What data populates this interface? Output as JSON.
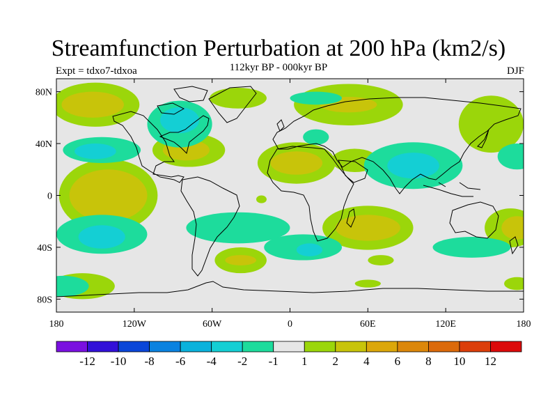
{
  "title": "Streamfunction Perturbation at 200 hPa (km2/s)",
  "subtitle": "112kyr BP - 000kyr BP",
  "left_header": "Expt = tdxo7-tdxoa",
  "right_header": "DJF",
  "axes": {
    "lat_ticks": [
      {
        "value": 80,
        "label": "80N"
      },
      {
        "value": 40,
        "label": "40N"
      },
      {
        "value": 0,
        "label": "0"
      },
      {
        "value": -40,
        "label": "40S"
      },
      {
        "value": -80,
        "label": "80S"
      }
    ],
    "lon_ticks": [
      {
        "value": -180,
        "label": "180"
      },
      {
        "value": -120,
        "label": "120W"
      },
      {
        "value": -60,
        "label": "60W"
      },
      {
        "value": 0,
        "label": "0"
      },
      {
        "value": 60,
        "label": "60E"
      },
      {
        "value": 120,
        "label": "120E"
      },
      {
        "value": 180,
        "label": "180"
      }
    ],
    "lon_range": [
      -180,
      180
    ],
    "lat_range": [
      -90,
      90
    ]
  },
  "colorbar": {
    "colors": [
      "#7a10e0",
      "#3210d8",
      "#0a46d8",
      "#0a82e0",
      "#0ab2dc",
      "#14cfd4",
      "#1ddc9c",
      "#e6e6e6",
      "#9bd60a",
      "#c8c40a",
      "#dca70a",
      "#dc870a",
      "#dc6a0a",
      "#dc3e0a",
      "#dc0a0a"
    ],
    "labels": [
      "-12",
      "-10",
      "-8",
      "-6",
      "-4",
      "-2",
      "-1",
      "1",
      "2",
      "4",
      "6",
      "8",
      "10",
      "12"
    ]
  },
  "map_fields": [
    {
      "kind": "pos",
      "level": 1,
      "lon": -140,
      "lat": 0,
      "rx": 38,
      "ry": 28
    },
    {
      "kind": "pos",
      "level": 2,
      "lon": -140,
      "lat": 0,
      "rx": 30,
      "ry": 20
    },
    {
      "kind": "pos",
      "level": 1,
      "lon": -150,
      "lat": 70,
      "rx": 34,
      "ry": 17
    },
    {
      "kind": "pos",
      "level": 2,
      "lon": -152,
      "lat": 70,
      "rx": 24,
      "ry": 10
    },
    {
      "kind": "pos",
      "level": 1,
      "lon": -78,
      "lat": 35,
      "rx": 28,
      "ry": 13
    },
    {
      "kind": "pos",
      "level": 2,
      "lon": -80,
      "lat": 35,
      "rx": 18,
      "ry": 8
    },
    {
      "kind": "pos",
      "level": 1,
      "lon": 5,
      "lat": 25,
      "rx": 30,
      "ry": 16
    },
    {
      "kind": "pos",
      "level": 2,
      "lon": 5,
      "lat": 25,
      "rx": 20,
      "ry": 9
    },
    {
      "kind": "pos",
      "level": 1,
      "lon": 50,
      "lat": 27,
      "rx": 18,
      "ry": 9
    },
    {
      "kind": "pos",
      "level": 1,
      "lon": -40,
      "lat": 75,
      "rx": 22,
      "ry": 8
    },
    {
      "kind": "pos",
      "level": 1,
      "lon": 45,
      "lat": 70,
      "rx": 42,
      "ry": 16
    },
    {
      "kind": "pos",
      "level": 2,
      "lon": 45,
      "lat": 70,
      "rx": 22,
      "ry": 6
    },
    {
      "kind": "pos",
      "level": 1,
      "lon": 155,
      "lat": 55,
      "rx": 25,
      "ry": 22
    },
    {
      "kind": "pos",
      "level": 1,
      "lon": 60,
      "lat": -25,
      "rx": 35,
      "ry": 17
    },
    {
      "kind": "pos",
      "level": 2,
      "lon": 60,
      "lat": -25,
      "rx": 25,
      "ry": 10
    },
    {
      "kind": "pos",
      "level": 1,
      "lon": 170,
      "lat": -25,
      "rx": 20,
      "ry": 15
    },
    {
      "kind": "pos",
      "level": 2,
      "lon": 175,
      "lat": -25,
      "rx": 12,
      "ry": 9
    },
    {
      "kind": "pos",
      "level": 1,
      "lon": -38,
      "lat": -50,
      "rx": 20,
      "ry": 10
    },
    {
      "kind": "pos",
      "level": 2,
      "lon": -38,
      "lat": -50,
      "rx": 12,
      "ry": 4
    },
    {
      "kind": "pos",
      "level": 1,
      "lon": 70,
      "lat": -50,
      "rx": 10,
      "ry": 4
    },
    {
      "kind": "pos",
      "level": 1,
      "lon": -160,
      "lat": -70,
      "rx": 25,
      "ry": 10
    },
    {
      "kind": "pos",
      "level": 1,
      "lon": 60,
      "lat": -68,
      "rx": 10,
      "ry": 3
    },
    {
      "kind": "pos",
      "level": 1,
      "lon": 175,
      "lat": -68,
      "rx": 10,
      "ry": 5
    },
    {
      "kind": "pos",
      "level": 1,
      "lon": -22,
      "lat": -3,
      "rx": 4,
      "ry": 3
    },
    {
      "kind": "neg",
      "level": -1,
      "lon": -145,
      "lat": -30,
      "rx": 35,
      "ry": 15
    },
    {
      "kind": "neg",
      "level": -2,
      "lon": -145,
      "lat": -32,
      "rx": 18,
      "ry": 9
    },
    {
      "kind": "neg",
      "level": -1,
      "lon": -145,
      "lat": 35,
      "rx": 30,
      "ry": 10
    },
    {
      "kind": "neg",
      "level": -2,
      "lon": -150,
      "lat": 34,
      "rx": 16,
      "ry": 6
    },
    {
      "kind": "neg",
      "level": -1,
      "lon": -85,
      "lat": 55,
      "rx": 25,
      "ry": 18
    },
    {
      "kind": "neg",
      "level": -2,
      "lon": -85,
      "lat": 58,
      "rx": 15,
      "ry": 10
    },
    {
      "kind": "neg",
      "level": -1,
      "lon": 95,
      "lat": 23,
      "rx": 38,
      "ry": 18
    },
    {
      "kind": "neg",
      "level": -2,
      "lon": 95,
      "lat": 23,
      "rx": 20,
      "ry": 10
    },
    {
      "kind": "neg",
      "level": -1,
      "lon": -40,
      "lat": -25,
      "rx": 40,
      "ry": 12
    },
    {
      "kind": "neg",
      "level": -1,
      "lon": 10,
      "lat": -40,
      "rx": 30,
      "ry": 10
    },
    {
      "kind": "neg",
      "level": -2,
      "lon": 15,
      "lat": -42,
      "rx": 10,
      "ry": 5
    },
    {
      "kind": "neg",
      "level": -1,
      "lon": -175,
      "lat": -70,
      "rx": 20,
      "ry": 8
    },
    {
      "kind": "neg",
      "level": -1,
      "lon": 140,
      "lat": -40,
      "rx": 30,
      "ry": 8
    },
    {
      "kind": "neg",
      "level": -1,
      "lon": 175,
      "lat": 30,
      "rx": 15,
      "ry": 10
    },
    {
      "kind": "neg",
      "level": -1,
      "lon": 20,
      "lat": 75,
      "rx": 20,
      "ry": 5
    },
    {
      "kind": "neg",
      "level": -1,
      "lon": 20,
      "lat": 45,
      "rx": 10,
      "ry": 6
    }
  ]
}
